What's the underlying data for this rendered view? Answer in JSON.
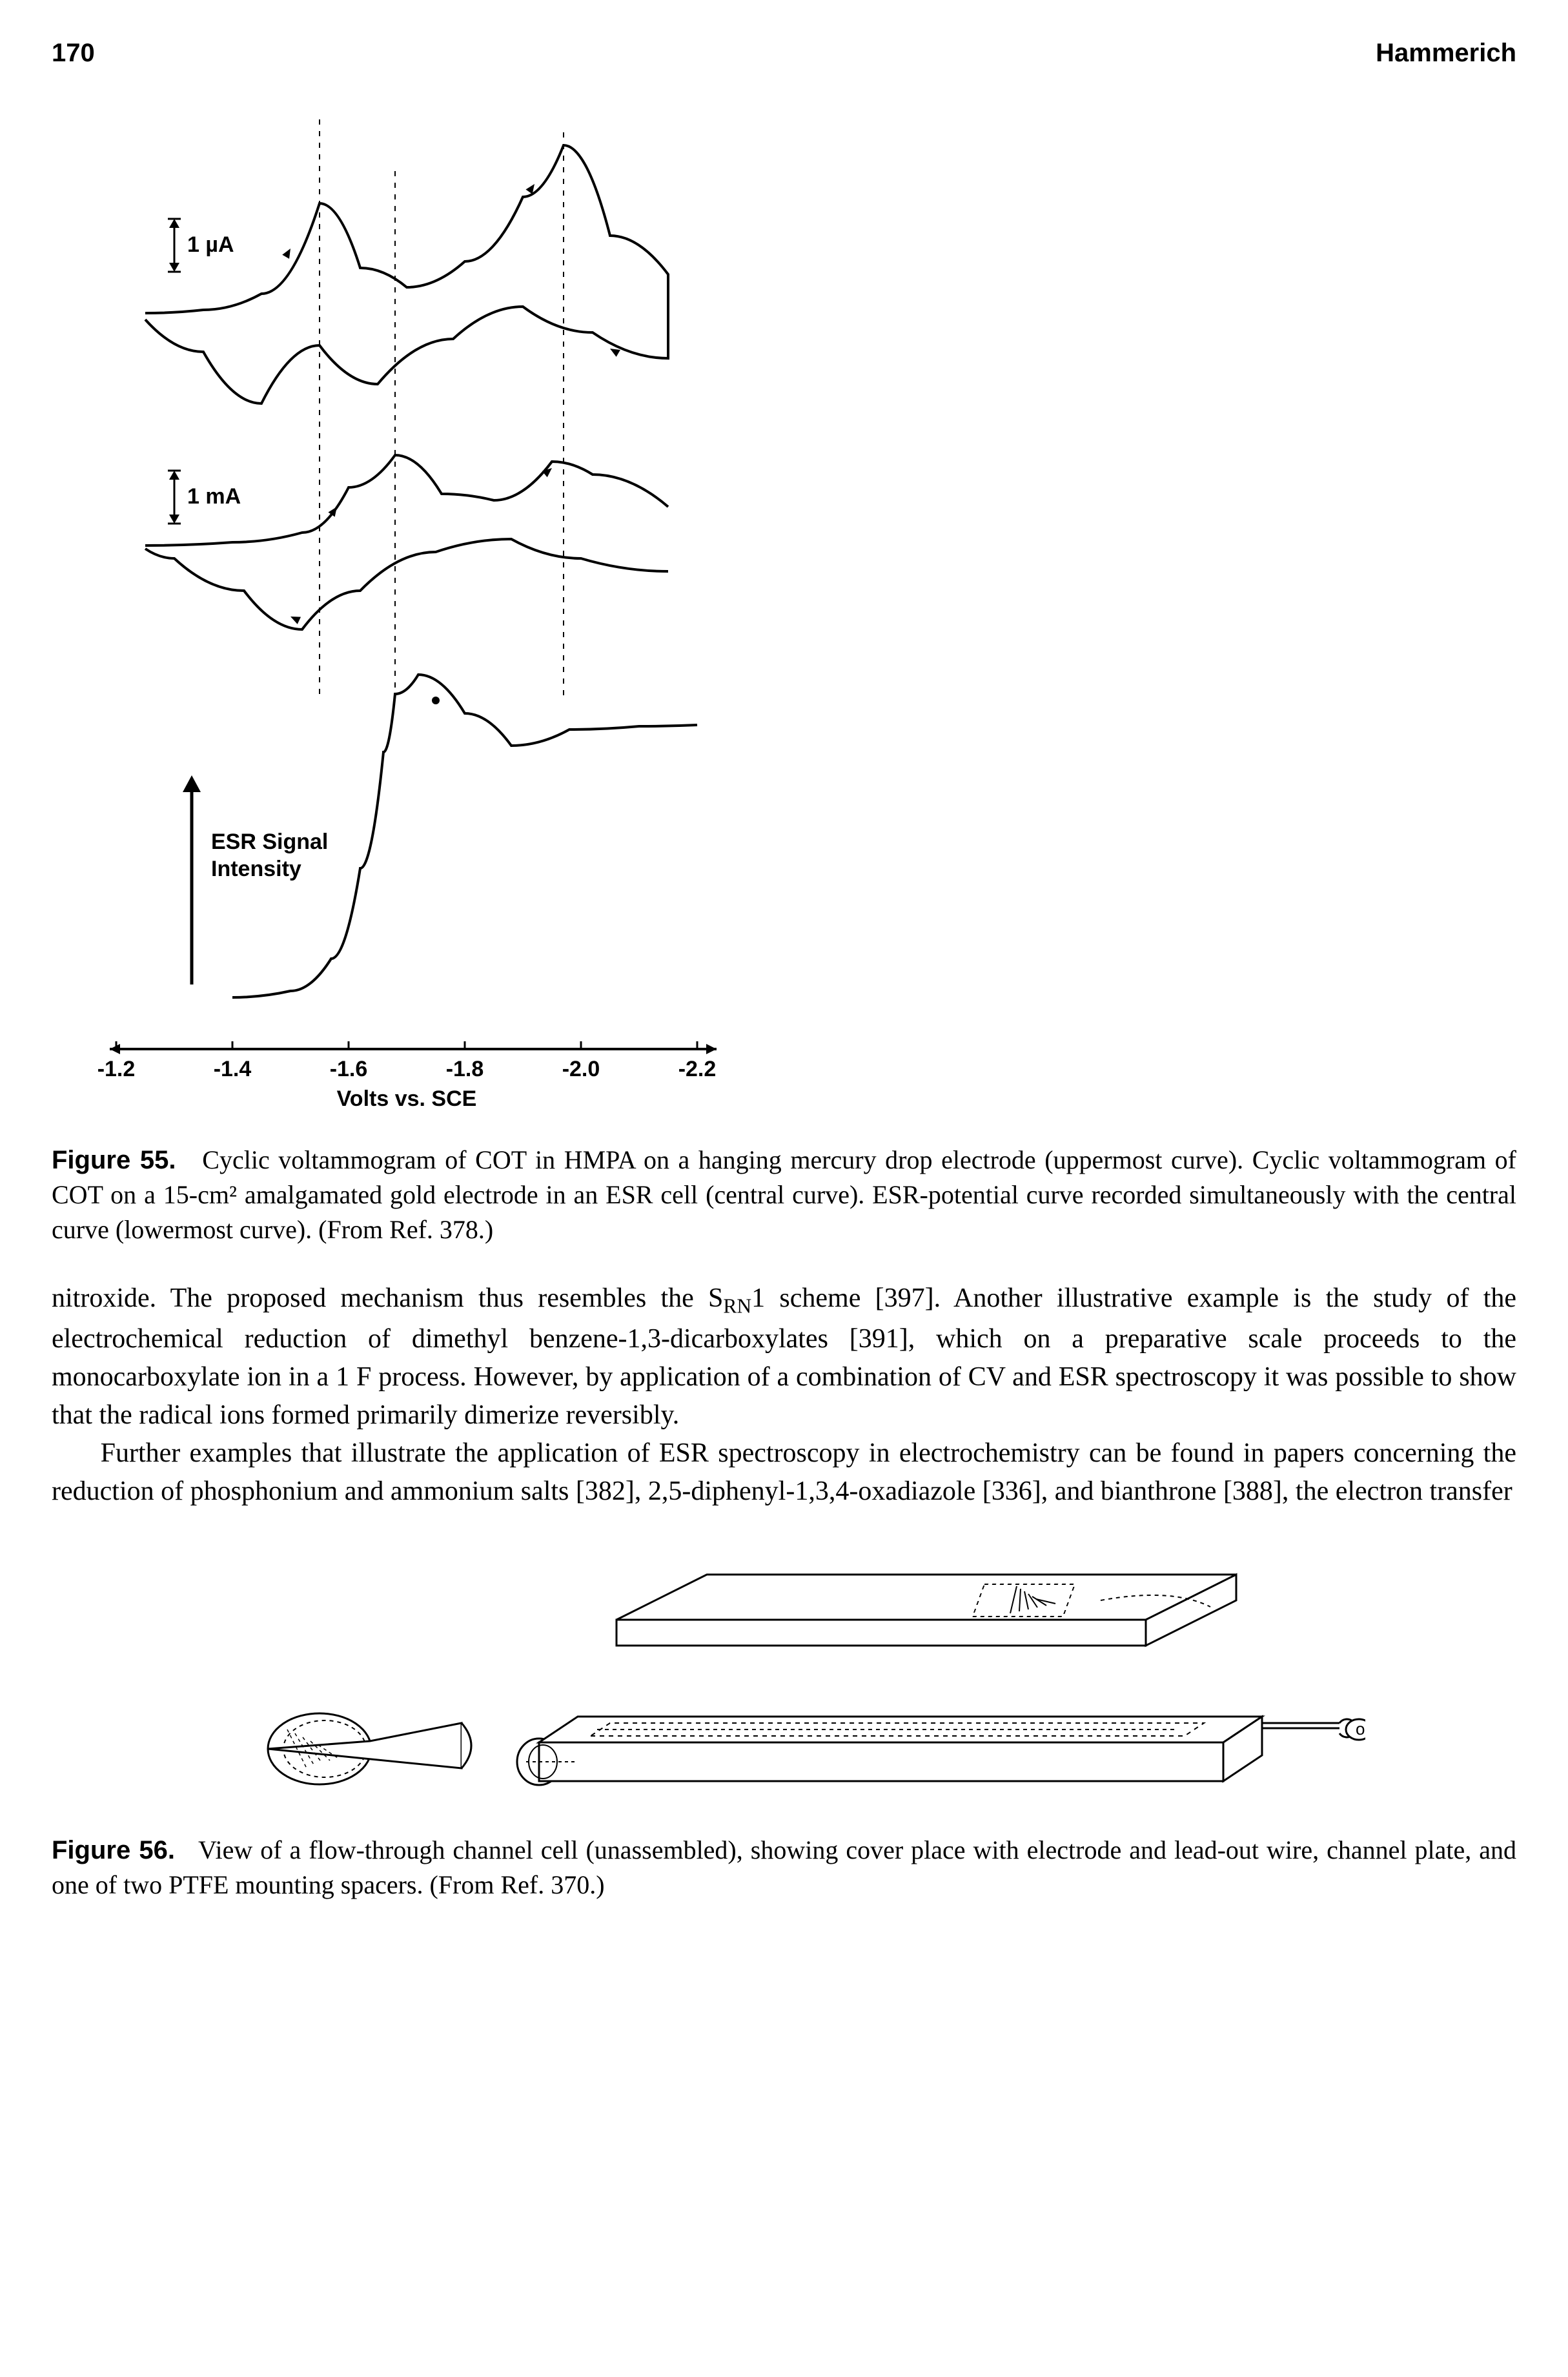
{
  "header": {
    "page_number": "170",
    "running_head": "Hammerich"
  },
  "figure55": {
    "type": "line",
    "scale_labels": {
      "current_micro": "1 µA",
      "current_milli": "1 mA"
    },
    "y_signal_label_line1": "ESR Signal",
    "y_signal_label_line2": "Intensity",
    "x_axis_label": "Volts vs. SCE",
    "x_ticks": [
      "-1.2",
      "-1.4",
      "-1.6",
      "-1.8",
      "-2.0",
      "-2.2"
    ],
    "xlim": [
      -1.2,
      -2.2
    ],
    "guide_line_positions_V": [
      -1.55,
      -1.68,
      -1.97
    ],
    "colors": {
      "stroke": "#000000",
      "background": "#ffffff"
    },
    "line_width_main": 4,
    "line_width_dash": 2,
    "arrow_head_size": 16,
    "axis_fontsize": 34,
    "label_fontsize": 34,
    "caption_label": "Figure 55.",
    "caption_text": "Cyclic voltammogram of COT in HMPA on a hanging mercury drop electrode (uppermost curve). Cyclic voltammogram of COT on a 15-cm² amalgamated gold electrode in an ESR cell (central curve). ESR-potential curve recorded simultaneously with the central curve (lowermost curve). (From Ref. 378.)"
  },
  "body": {
    "paragraph1_html": "nitroxide. The proposed mechanism thus resembles the S<sub>RN</sub>1 scheme [397]. Another illustrative example is the study of the electrochemical reduction of dimethyl benzene-1,3-dicarboxylates [391], which on a preparative scale proceeds to the monocarboxylate ion in a 1 F process. However, by application of a combination of CV and ESR spectroscopy it was possible to show that the radical ions formed primarily dimerize reversibly.",
    "paragraph2": "Further examples that illustrate the application of ESR spectroscopy in electrochemistry can be found in papers concerning the reduction of phosphonium and ammonium salts [382], 2,5-diphenyl-1,3,4-oxadiazole [336], and bianthrone [388], the electron transfer"
  },
  "figure56": {
    "type": "diagram",
    "caption_label": "Figure 56.",
    "caption_text": "View of a flow-through channel cell (unassembled), showing cover place with electrode and lead-out wire, channel plate, and one of two PTFE mounting spacers. (From Ref. 370.)",
    "colors": {
      "stroke": "#000000",
      "fill": "#ffffff"
    },
    "line_width": 3
  }
}
